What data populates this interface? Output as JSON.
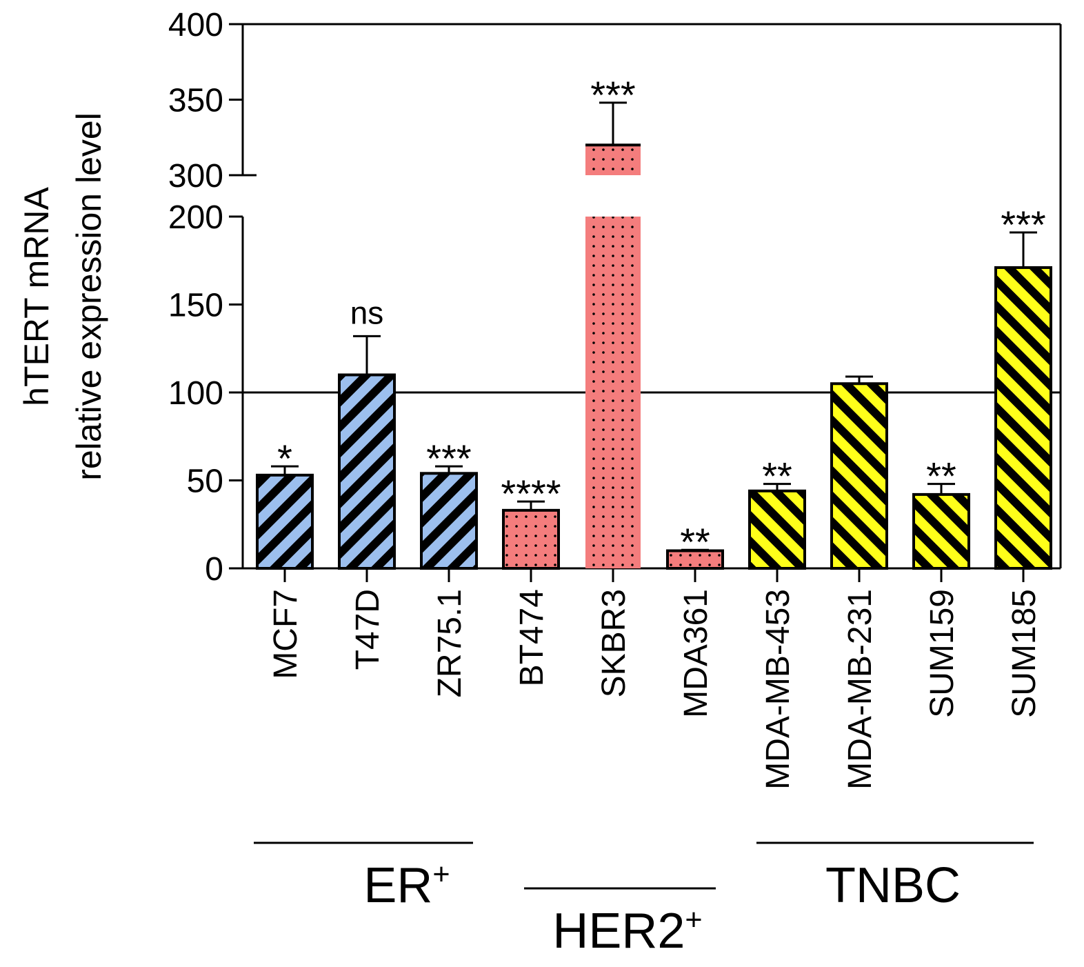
{
  "chart_data": {
    "type": "bar",
    "ylabel_line1": "hTERT mRNA",
    "ylabel_line2": "relative expression level",
    "y_axis_break": {
      "lower": [
        0,
        200
      ],
      "upper": [
        300,
        400
      ]
    },
    "y_ticks_lower": [
      0,
      50,
      100,
      150,
      200
    ],
    "y_ticks_upper": [
      300,
      350,
      400
    ],
    "reference_line": 100,
    "categories": [
      "MCF7",
      "T47D",
      "ZR75.1",
      "BT474",
      "SKBR3",
      "MDA361",
      "MDA-MB-453",
      "MDA-MB-231",
      "SUM159",
      "SUM185"
    ],
    "values": [
      53,
      110,
      54,
      33,
      320,
      10,
      44,
      105,
      42,
      171
    ],
    "errors": [
      5,
      22,
      4,
      5,
      28,
      0.5,
      4,
      4,
      6,
      20
    ],
    "significance": [
      "*",
      "ns",
      "***",
      "****",
      "***",
      "**",
      "**",
      "",
      "**",
      "***"
    ],
    "groups": [
      "ER",
      "ER",
      "ER",
      "HER2",
      "HER2",
      "HER2",
      "TNBC",
      "TNBC",
      "TNBC",
      "TNBC"
    ],
    "group_labels": [
      {
        "key": "ER",
        "base": "ER",
        "sup": "+"
      },
      {
        "key": "HER2",
        "base": "HER2",
        "sup": "+"
      },
      {
        "key": "TNBC",
        "base": "TNBC",
        "sup": ""
      }
    ],
    "colors": {
      "ER": "#9cbfee",
      "HER2": "#f47d7d",
      "TNBC": "#ffff1a",
      "stripe": "#000000",
      "dot": "#000000"
    }
  }
}
